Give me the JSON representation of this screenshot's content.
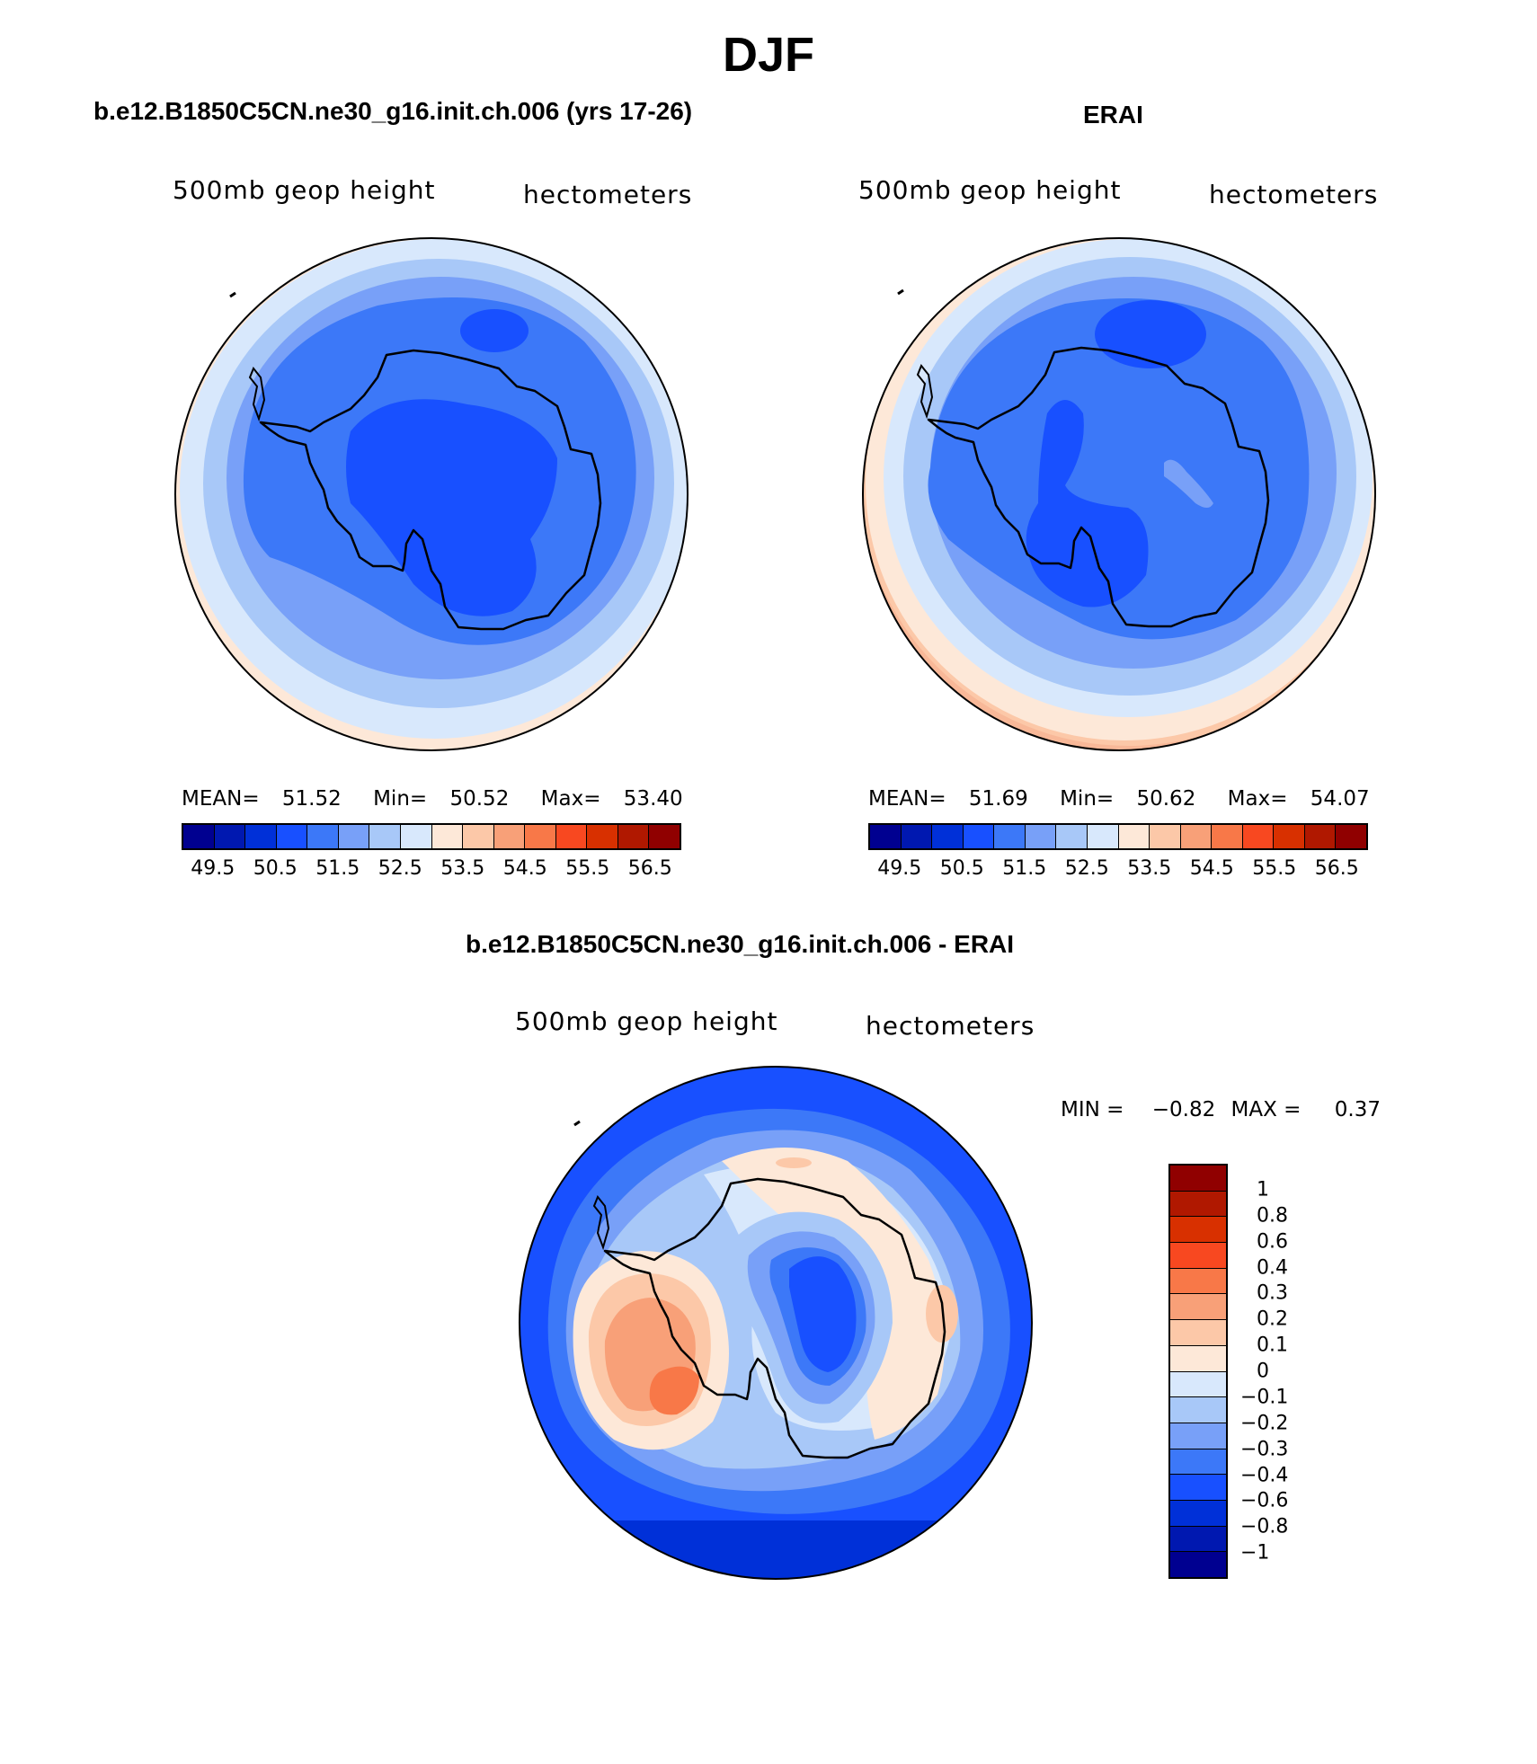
{
  "figure": {
    "title": "DJF"
  },
  "panels": [
    {
      "title": "b.e12.B1850C5CN.ne30_g16.init.ch.006 (yrs 17-26)",
      "variable": "500mb geop height",
      "units": "hectometers",
      "stats": {
        "mean_label": "MEAN=",
        "mean": "51.52",
        "min_label": "Min=",
        "min": "50.52",
        "max_label": "Max=",
        "max": "53.40"
      }
    },
    {
      "title": "ERAI",
      "variable": "500mb geop height",
      "units": "hectometers",
      "stats": {
        "mean_label": "MEAN=",
        "mean": "51.69",
        "min_label": "Min=",
        "min": "50.62",
        "max_label": "Max=",
        "max": "54.07"
      }
    },
    {
      "title": "b.e12.B1850C5CN.ne30_g16.init.ch.006 - ERAI",
      "variable": "500mb geop height",
      "units": "hectometers",
      "stats": {
        "min_label": "MIN =",
        "min": "−0.82",
        "max_label": "MAX =",
        "max": "0.37"
      }
    }
  ],
  "colorbar_abs": {
    "colors": [
      "#000090",
      "#0018b0",
      "#0030d8",
      "#1850ff",
      "#3c78f8",
      "#78a0f8",
      "#a8c8f8",
      "#d8e8fc",
      "#fde8d8",
      "#fcc8a8",
      "#f8a078",
      "#f87848",
      "#f84820",
      "#d83000",
      "#b01800",
      "#900000"
    ],
    "labels": [
      "49.5",
      "50.5",
      "51.5",
      "52.5",
      "53.5",
      "54.5",
      "55.5",
      "56.5"
    ]
  },
  "colorbar_diff": {
    "colors": [
      "#000090",
      "#0018b0",
      "#0030d8",
      "#1850ff",
      "#3c78f8",
      "#78a0f8",
      "#a8c8f8",
      "#d8e8fc",
      "#fde8d8",
      "#fcc8a8",
      "#f8a078",
      "#f87848",
      "#f84820",
      "#d83000",
      "#b01800",
      "#900000"
    ],
    "labels": [
      "1",
      "0.8",
      "0.6",
      "0.4",
      "0.3",
      "0.2",
      "0.1",
      "0",
      "−0.1",
      "−0.2",
      "−0.3",
      "−0.4",
      "−0.6",
      "−0.8",
      "−1"
    ]
  }
}
